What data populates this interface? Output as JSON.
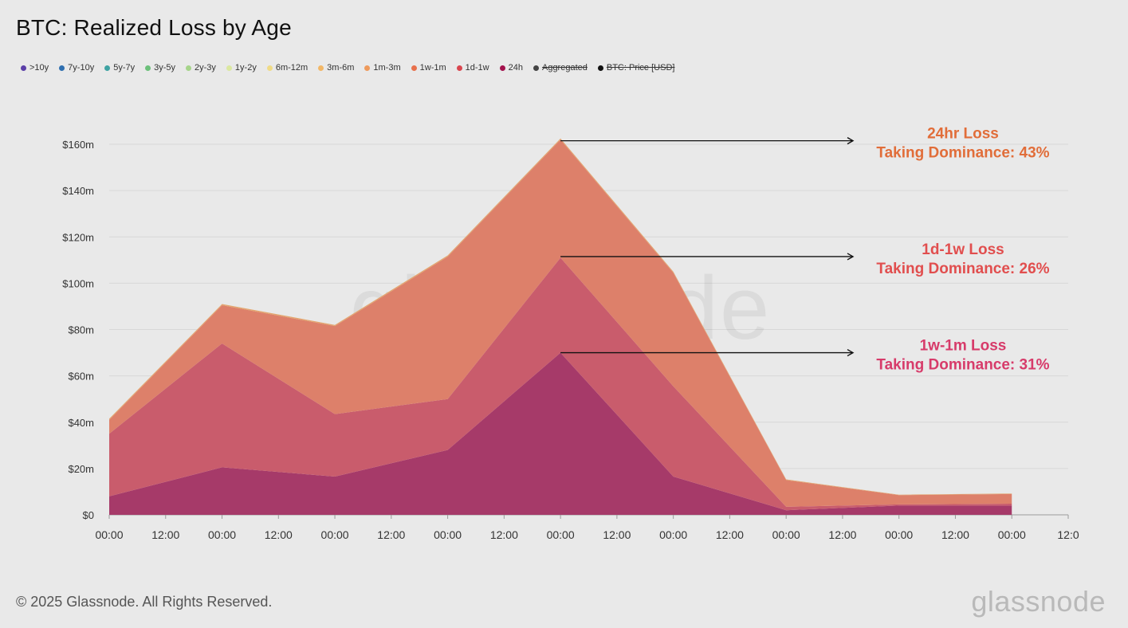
{
  "header": {
    "title": "BTC: Realized Loss by Age"
  },
  "legend": [
    {
      "label": ">10y",
      "color": "#5b3fa8",
      "struck": false
    },
    {
      "label": "7y-10y",
      "color": "#2f6fb0",
      "struck": false
    },
    {
      "label": "5y-7y",
      "color": "#3fa3a3",
      "struck": false
    },
    {
      "label": "3y-5y",
      "color": "#6cc07a",
      "struck": false
    },
    {
      "label": "2y-3y",
      "color": "#a6d48a",
      "struck": false
    },
    {
      "label": "1y-2y",
      "color": "#dbe8a0",
      "struck": false
    },
    {
      "label": "6m-12m",
      "color": "#f0db86",
      "struck": false
    },
    {
      "label": "3m-6m",
      "color": "#f2b766",
      "struck": false
    },
    {
      "label": "1m-3m",
      "color": "#ee9a5c",
      "struck": false
    },
    {
      "label": "1w-1m",
      "color": "#e8704c",
      "struck": false
    },
    {
      "label": "1d-1w",
      "color": "#d9464f",
      "struck": false
    },
    {
      "label": "24h",
      "color": "#a3124d",
      "struck": false
    },
    {
      "label": "Aggregated",
      "color": "#444444",
      "struck": true
    },
    {
      "label": "BTC: Price [USD]",
      "color": "#111111",
      "struck": true
    }
  ],
  "chart_data": {
    "type": "area",
    "stacked": true,
    "ylim": [
      0,
      160
    ],
    "y_ticks": [
      0,
      20,
      40,
      60,
      80,
      100,
      120,
      140,
      160
    ],
    "y_tick_labels": [
      "$0",
      "$20m",
      "$40m",
      "$60m",
      "$80m",
      "$100m",
      "$120m",
      "$140m",
      "$160m"
    ],
    "x_tick_labels": [
      "00:00",
      "12:00",
      "00:00",
      "12:00",
      "00:00",
      "12:00",
      "00:00",
      "12:00",
      "00:00",
      "12:00",
      "00:00",
      "12:00",
      "00:00",
      "12:00",
      "00:00",
      "12:00",
      "00:00",
      "12:0"
    ],
    "x": [
      0,
      2,
      4,
      6,
      8,
      10,
      12,
      14,
      16
    ],
    "x_end": 17,
    "grid": true,
    "series": [
      {
        "name": "24h",
        "color": "#a63a69",
        "values": [
          8,
          20.5,
          16.5,
          28,
          70,
          16.5,
          2,
          4,
          4
        ]
      },
      {
        "name": "1d-1w",
        "color": "#c95c6c",
        "values": [
          27,
          53.5,
          27,
          22,
          41,
          39,
          1.5,
          0.5,
          0.8
        ]
      },
      {
        "name": "1w-1m",
        "color": "#dd806a",
        "values": [
          6,
          16.5,
          38,
          61.5,
          51,
          49,
          11.5,
          4,
          4.2
        ]
      },
      {
        "name": "1m-3m",
        "color": "#e3a56e",
        "values": [
          0.5,
          0.5,
          0.5,
          0.5,
          0.5,
          0.5,
          0.3,
          0.2,
          0.2
        ]
      }
    ],
    "annotations": [
      {
        "line1": "24hr Loss",
        "line2": "Taking Dominance: 43%",
        "color": "#e16d39",
        "y_value": 161.5
      },
      {
        "line1": "1d-1w Loss",
        "line2": "Taking Dominance: 26%",
        "color": "#e14e4e",
        "y_value": 111.5
      },
      {
        "line1": "1w-1m Loss",
        "line2": "Taking Dominance: 31%",
        "color": "#d73b6a",
        "y_value": 70
      }
    ],
    "watermark": "glassnode"
  },
  "footer": {
    "copyright": "© 2025 Glassnode. All Rights Reserved.",
    "brand": "glassnode"
  }
}
